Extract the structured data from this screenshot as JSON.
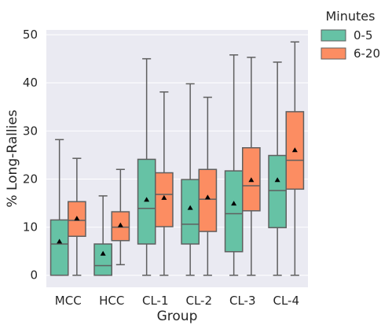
{
  "chart_data": {
    "type": "boxplot",
    "xlabel": "Group",
    "ylabel": "% Long-Rallies",
    "ylim": [
      -2.5,
      51
    ],
    "yticks": [
      0,
      10,
      20,
      30,
      40,
      50
    ],
    "grid": true,
    "categories": [
      "MCC",
      "HCC",
      "CL-1",
      "CL-2",
      "CL-3",
      "CL-4"
    ],
    "legend": {
      "title": "Minutes",
      "placement": "outside-top-right"
    },
    "series": [
      {
        "name": "0-5",
        "color": "#66c2a5",
        "boxes": [
          {
            "whislo": 0,
            "q1": 0,
            "med": 6.5,
            "q3": 11.5,
            "whishi": 28.2,
            "mean": 7.0
          },
          {
            "whislo": 0,
            "q1": 0,
            "med": 2.0,
            "q3": 6.5,
            "whishi": 16.5,
            "mean": 4.5
          },
          {
            "whislo": 0,
            "q1": 6.5,
            "med": 13.9,
            "q3": 24.1,
            "whishi": 45.0,
            "mean": 15.7
          },
          {
            "whislo": 0,
            "q1": 6.5,
            "med": 10.6,
            "q3": 19.9,
            "whishi": 39.8,
            "mean": 14.0
          },
          {
            "whislo": 0,
            "q1": 4.9,
            "med": 12.8,
            "q3": 21.7,
            "whishi": 45.8,
            "mean": 14.9
          },
          {
            "whislo": 0,
            "q1": 9.9,
            "med": 17.6,
            "q3": 24.9,
            "whishi": 44.3,
            "mean": 19.8
          }
        ]
      },
      {
        "name": "6-20",
        "color": "#fc8d62",
        "boxes": [
          {
            "whislo": 0,
            "q1": 8.1,
            "med": 11.4,
            "q3": 15.3,
            "whishi": 24.3,
            "mean": 11.8
          },
          {
            "whislo": 2.2,
            "q1": 7.2,
            "med": 10.0,
            "q3": 13.2,
            "whishi": 22.0,
            "mean": 10.4
          },
          {
            "whislo": 0,
            "q1": 10.1,
            "med": 16.8,
            "q3": 21.3,
            "whishi": 38.1,
            "mean": 16.1
          },
          {
            "whislo": 0,
            "q1": 9.1,
            "med": 15.8,
            "q3": 22.0,
            "whishi": 37.0,
            "mean": 16.2
          },
          {
            "whislo": 0,
            "q1": 13.4,
            "med": 18.6,
            "q3": 26.5,
            "whishi": 45.3,
            "mean": 19.8
          },
          {
            "whislo": 0,
            "q1": 17.9,
            "med": 23.9,
            "q3": 34.0,
            "whishi": 48.5,
            "mean": 26.0
          }
        ]
      }
    ]
  }
}
